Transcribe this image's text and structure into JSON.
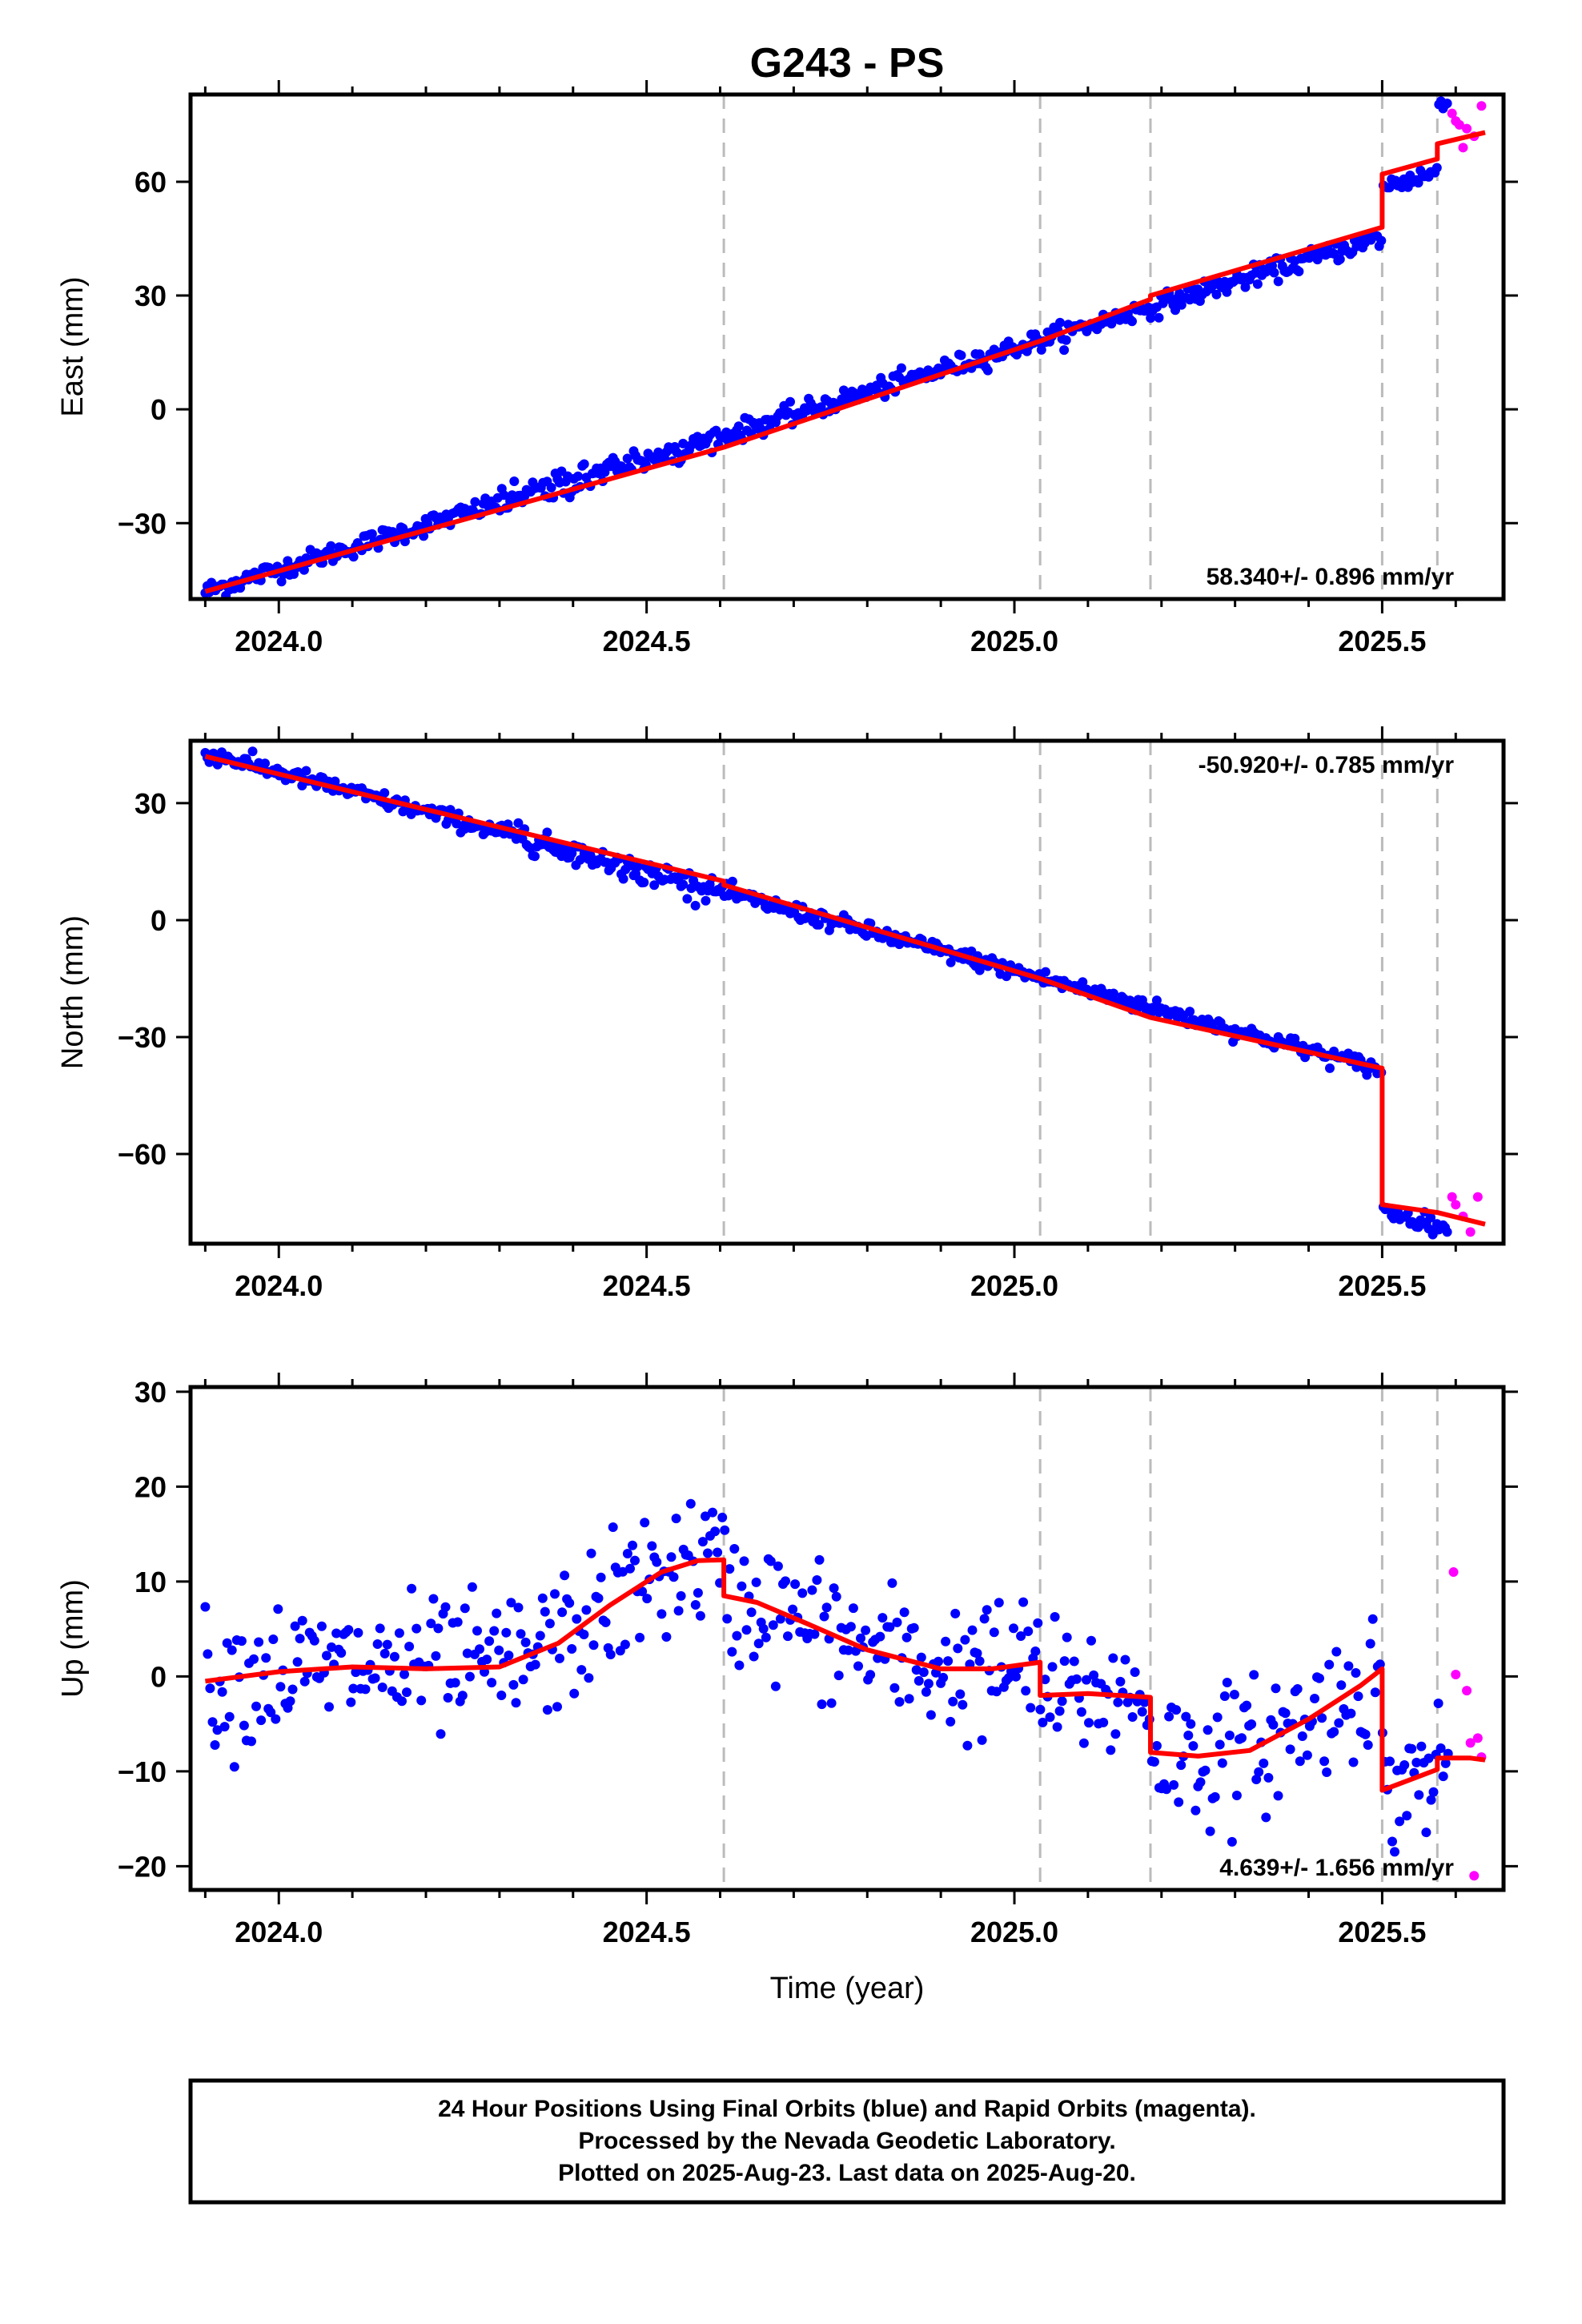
{
  "chart_data": {
    "type": "scatter",
    "title": "G243 - PS",
    "xlabel": "Time (year)",
    "xlim": [
      2023.88,
      2025.665
    ],
    "x_ticks": [
      2024.0,
      2024.5,
      2025.0,
      2025.5
    ],
    "x_tick_labels": [
      "2024.0",
      "2024.5",
      "2025.0",
      "2025.5"
    ],
    "event_lines": [
      2024.605,
      2025.035,
      2025.185,
      2025.5,
      2025.575
    ],
    "colors": {
      "final": "#0000ff",
      "rapid": "#ff00ff",
      "model": "#ff0000",
      "event_line": "#bbbbbb"
    },
    "panels": [
      {
        "name": "east",
        "ylabel": "East (mm)",
        "ylim": [
          -50,
          83
        ],
        "y_ticks": [
          -30,
          0,
          30,
          60
        ],
        "y_tick_labels": [
          "−30",
          "0",
          "30",
          "60"
        ],
        "rate_label": "58.340+/- 0.896 mm/yr",
        "rate_position": "bottom-right",
        "model": [
          [
            2023.9,
            -48
          ],
          [
            2024.605,
            -10
          ],
          [
            2024.605,
            -10
          ],
          [
            2025.035,
            18
          ],
          [
            2025.035,
            18
          ],
          [
            2025.185,
            29
          ],
          [
            2025.185,
            30
          ],
          [
            2025.5,
            48
          ],
          [
            2025.5,
            62
          ],
          [
            2025.575,
            66
          ],
          [
            2025.575,
            70
          ],
          [
            2025.64,
            73
          ]
        ],
        "final_series": {
          "slope": 58.34,
          "ref": [
            2023.9,
            -48
          ],
          "noise": 2.2,
          "start": 2023.9,
          "end": 2025.59,
          "step": 0.0028,
          "offsets": [
            [
              2025.5,
              13
            ],
            [
              2025.575,
              17
            ]
          ]
        },
        "rapid_points": [
          [
            2025.595,
            78
          ],
          [
            2025.6,
            76
          ],
          [
            2025.605,
            75
          ],
          [
            2025.61,
            69
          ],
          [
            2025.615,
            74
          ],
          [
            2025.625,
            72
          ],
          [
            2025.635,
            80
          ]
        ]
      },
      {
        "name": "north",
        "ylabel": "North (mm)",
        "ylim": [
          -83,
          46
        ],
        "y_ticks": [
          -60,
          -30,
          0,
          30
        ],
        "y_tick_labels": [
          "−60",
          "−30",
          "0",
          "30"
        ],
        "rate_label": "-50.920+/- 0.785 mm/yr",
        "rate_position": "top-right",
        "model": [
          [
            2023.9,
            42
          ],
          [
            2024.605,
            10
          ],
          [
            2024.605,
            9
          ],
          [
            2025.035,
            -15
          ],
          [
            2025.035,
            -15
          ],
          [
            2025.185,
            -25
          ],
          [
            2025.185,
            -25
          ],
          [
            2025.5,
            -38
          ],
          [
            2025.5,
            -73
          ],
          [
            2025.575,
            -75
          ],
          [
            2025.575,
            -75
          ],
          [
            2025.64,
            -78
          ]
        ],
        "final_series": {
          "slope": -50.92,
          "ref": [
            2023.9,
            43
          ],
          "noise": 1.8,
          "start": 2023.9,
          "end": 2025.59,
          "step": 0.0028,
          "offsets": [
            [
              2025.5,
              -36
            ]
          ]
        },
        "rapid_points": [
          [
            2025.595,
            -71
          ],
          [
            2025.6,
            -73
          ],
          [
            2025.61,
            -76
          ],
          [
            2025.62,
            -80
          ],
          [
            2025.63,
            -71
          ]
        ]
      },
      {
        "name": "up",
        "ylabel": "Up (mm)",
        "ylim": [
          -22.5,
          30.5
        ],
        "y_ticks": [
          -20,
          -10,
          0,
          10,
          20,
          30
        ],
        "y_tick_labels": [
          "−20",
          "−10",
          "0",
          "10",
          "20",
          "30"
        ],
        "rate_label": "4.639+/- 1.656 mm/yr",
        "rate_position": "bottom-right",
        "model": [
          [
            2023.9,
            -0.5
          ],
          [
            2024.0,
            0.5
          ],
          [
            2024.1,
            1.0
          ],
          [
            2024.2,
            0.8
          ],
          [
            2024.3,
            1.0
          ],
          [
            2024.38,
            3.5
          ],
          [
            2024.45,
            7.5
          ],
          [
            2024.52,
            11.0
          ],
          [
            2024.57,
            12.2
          ],
          [
            2024.605,
            12.3
          ],
          [
            2024.605,
            8.5
          ],
          [
            2024.65,
            7.8
          ],
          [
            2024.72,
            5.5
          ],
          [
            2024.8,
            2.8
          ],
          [
            2024.9,
            0.8
          ],
          [
            2024.97,
            0.8
          ],
          [
            2025.035,
            1.5
          ],
          [
            2025.035,
            -2.0
          ],
          [
            2025.1,
            -1.8
          ],
          [
            2025.185,
            -2.2
          ],
          [
            2025.185,
            -8.0
          ],
          [
            2025.25,
            -8.4
          ],
          [
            2025.32,
            -7.8
          ],
          [
            2025.4,
            -4.5
          ],
          [
            2025.47,
            -1.0
          ],
          [
            2025.5,
            0.8
          ],
          [
            2025.5,
            -12.0
          ],
          [
            2025.575,
            -9.8
          ],
          [
            2025.575,
            -8.6
          ],
          [
            2025.62,
            -8.6
          ],
          [
            2025.64,
            -8.8
          ]
        ],
        "final_series": {
          "model_based": true,
          "noise": 3.6,
          "start": 2023.9,
          "end": 2025.59,
          "step": 0.0033
        },
        "rapid_points": [
          [
            2025.597,
            11
          ],
          [
            2025.6,
            0.2
          ],
          [
            2025.615,
            -1.5
          ],
          [
            2025.62,
            -7
          ],
          [
            2025.625,
            -21
          ],
          [
            2025.63,
            -6.5
          ],
          [
            2025.635,
            -8.5
          ]
        ]
      }
    ],
    "footer": [
      "24 Hour Positions Using Final Orbits (blue) and Rapid Orbits (magenta).",
      "Processed by the Nevada Geodetic Laboratory.",
      "Plotted on 2025-Aug-23. Last data on 2025-Aug-20."
    ]
  }
}
